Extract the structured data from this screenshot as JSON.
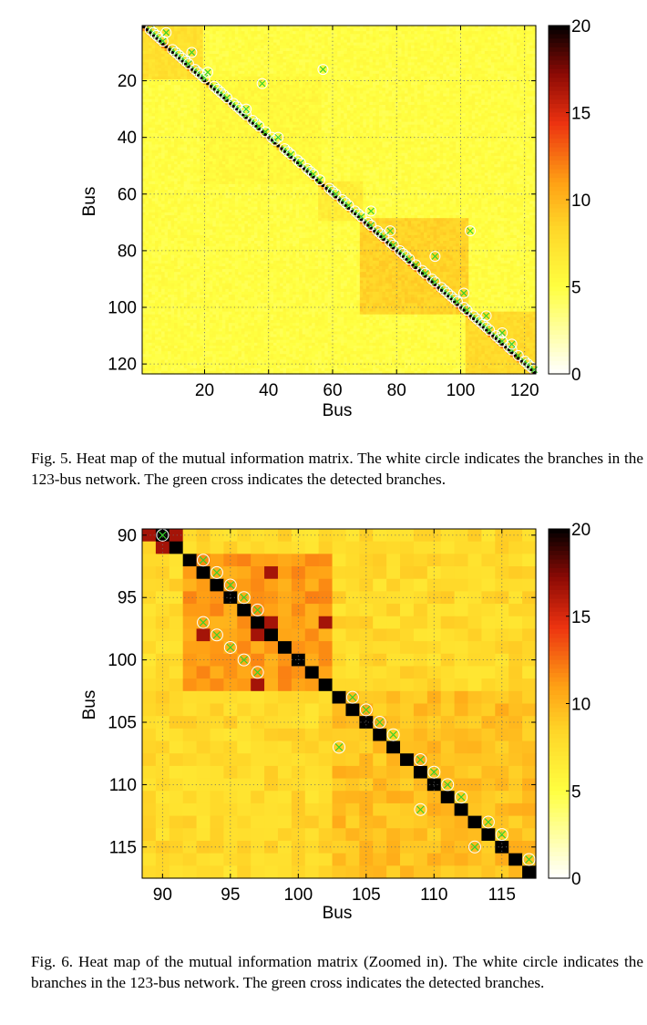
{
  "figures": [
    {
      "caption": "Fig. 5.   Heat map of the mutual information matrix. The white circle indicates the branches in the 123-bus network. The green cross indicates the detected branches.",
      "chart_data": {
        "type": "heatmap",
        "title": "",
        "xlabel": "Bus",
        "ylabel": "Bus",
        "x_range": [
          1,
          123
        ],
        "y_range": [
          1,
          123
        ],
        "x_ticks": [
          20,
          40,
          60,
          80,
          100,
          120
        ],
        "y_ticks": [
          20,
          40,
          60,
          80,
          100,
          120
        ],
        "y_reversed": true,
        "grid": true,
        "colorbar": {
          "range": [
            0,
            20
          ],
          "ticks": [
            0,
            5,
            10,
            15,
            20
          ],
          "colormap": "hot-reversed"
        },
        "blocks": [
          {
            "range": [
              1,
              19
            ],
            "value": 7.5
          },
          {
            "range": [
              19,
              56
            ],
            "value": 5.5
          },
          {
            "range": [
              56,
              69
            ],
            "value": 6.5
          },
          {
            "range": [
              69,
              102
            ],
            "value": 8.5
          },
          {
            "range": [
              102,
              123
            ],
            "value": 8.0
          }
        ],
        "background_value": 5.0,
        "diagonal_value": 20,
        "branches_diagonal": [
          2,
          3,
          4,
          5,
          6,
          9,
          10,
          11,
          12,
          13,
          14,
          16,
          17,
          18,
          19,
          22,
          23,
          24,
          25,
          26,
          28,
          29,
          30,
          31,
          32,
          34,
          35,
          36,
          38,
          40,
          41,
          44,
          45,
          46,
          48,
          49,
          51,
          52,
          53,
          55,
          58,
          59,
          60,
          62,
          63,
          64,
          66,
          67,
          68,
          70,
          71,
          73,
          74,
          75,
          77,
          78,
          80,
          81,
          82,
          83,
          85,
          87,
          88,
          90,
          91,
          93,
          94,
          95,
          96,
          97,
          98,
          100,
          101,
          103,
          104,
          105,
          106,
          107,
          108,
          110,
          111,
          112,
          114,
          115,
          117,
          119,
          120,
          121,
          122
        ],
        "branches_offdiagonal": [
          [
            3,
            8
          ],
          [
            10,
            16
          ],
          [
            17,
            21
          ],
          [
            21,
            38
          ],
          [
            16,
            57
          ],
          [
            30,
            33
          ],
          [
            40,
            43
          ],
          [
            66,
            72
          ],
          [
            73,
            78
          ],
          [
            82,
            92
          ],
          [
            73,
            103
          ],
          [
            103,
            108
          ],
          [
            95,
            101
          ],
          [
            109,
            113
          ],
          [
            113,
            116
          ]
        ]
      }
    },
    {
      "caption": "Fig. 6.   Heat map of the mutual information matrix (Zoomed in). The white circle indicates the branches in the 123-bus network. The green cross indicates the detected branches.",
      "chart_data": {
        "type": "heatmap",
        "title": "",
        "xlabel": "Bus",
        "ylabel": "Bus",
        "x_range": [
          89,
          117
        ],
        "y_range": [
          90,
          117
        ],
        "x_ticks": [
          90,
          95,
          100,
          105,
          110,
          115
        ],
        "y_ticks": [
          90,
          95,
          100,
          105,
          110,
          115
        ],
        "y_reversed": true,
        "grid": true,
        "colorbar": {
          "range": [
            0,
            20
          ],
          "ticks": [
            0,
            5,
            10,
            15,
            20
          ],
          "colormap": "hot-reversed"
        },
        "blocks": [
          {
            "range": [
              92,
              102
            ],
            "value": 11.0
          },
          {
            "range": [
              103,
              117
            ],
            "value": 9.5
          }
        ],
        "background_value": 8.0,
        "diagonal_value": 20,
        "dark_cells": [
          [
            90,
            89
          ],
          [
            91,
            90
          ],
          [
            93,
            98
          ],
          [
            97,
            102
          ],
          [
            97,
            98
          ]
        ],
        "branches": [
          [
            90,
            90
          ],
          [
            92,
            93
          ],
          [
            93,
            94
          ],
          [
            94,
            95
          ],
          [
            95,
            96
          ],
          [
            96,
            97
          ],
          [
            97,
            93
          ],
          [
            98,
            94
          ],
          [
            99,
            95
          ],
          [
            100,
            96
          ],
          [
            101,
            97
          ],
          [
            103,
            104
          ],
          [
            104,
            105
          ],
          [
            105,
            106
          ],
          [
            106,
            107
          ],
          [
            107,
            103
          ],
          [
            108,
            109
          ],
          [
            109,
            110
          ],
          [
            110,
            111
          ],
          [
            111,
            112
          ],
          [
            112,
            109
          ],
          [
            113,
            114
          ],
          [
            114,
            115
          ],
          [
            115,
            113
          ],
          [
            116,
            117
          ]
        ]
      }
    }
  ]
}
